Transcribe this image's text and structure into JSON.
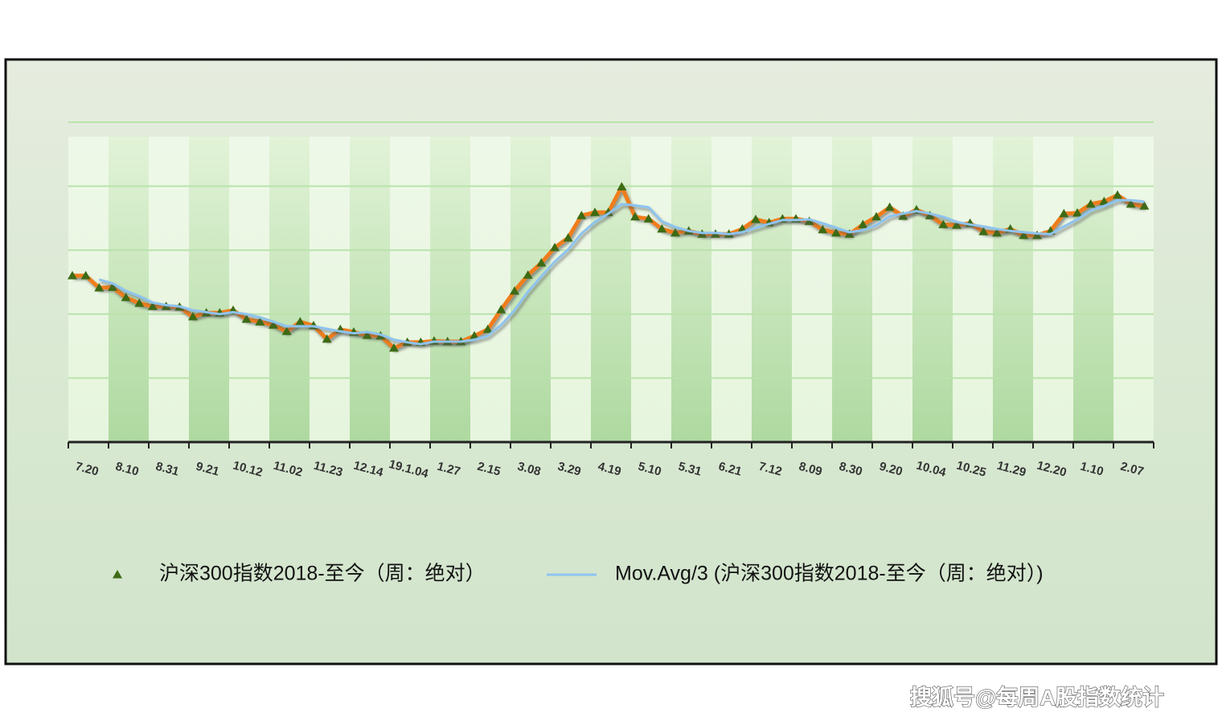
{
  "chart_data": {
    "type": "line",
    "categories": [
      "7.20",
      null,
      null,
      "8.10",
      null,
      null,
      "8.31",
      null,
      null,
      "9.21",
      null,
      null,
      "10.12",
      null,
      null,
      "11.02",
      null,
      null,
      "11.23",
      null,
      null,
      "12.14",
      null,
      null,
      "19.1.04",
      null,
      null,
      "1.27",
      null,
      null,
      "2.15",
      null,
      null,
      "3.08",
      null,
      null,
      "3.29",
      null,
      null,
      "4.19",
      null,
      null,
      "5.10",
      null,
      null,
      "5.31",
      null,
      null,
      "6.21",
      null,
      null,
      "7.12",
      null,
      null,
      "8.09",
      null,
      null,
      "8.30",
      null,
      null,
      "9.20",
      null,
      null,
      "10.04",
      null,
      null,
      "10.25",
      null,
      null,
      "11.29",
      null,
      null,
      "12.20",
      null,
      null,
      "1.10",
      null,
      null,
      "2.07",
      null,
      null
    ],
    "series": [
      {
        "name": "沪深300指数2018-至今（周：绝对）",
        "color": "#f07d1a",
        "marker_color": "#3d6b14",
        "values": [
          260,
          260,
          241,
          242,
          226,
          217,
          212,
          212,
          211,
          196,
          202,
          202,
          206,
          192,
          188,
          183,
          173,
          188,
          182,
          161,
          176,
          172,
          167,
          166,
          147,
          156,
          156,
          158,
          157,
          157,
          166,
          176,
          207,
          236,
          261,
          280,
          304,
          319,
          354,
          359,
          359,
          399,
          352,
          349,
          333,
          327,
          330,
          325,
          325,
          325,
          333,
          348,
          343,
          349,
          349,
          345,
          332,
          327,
          325,
          340,
          352,
          367,
          353,
          363,
          354,
          340,
          339,
          342,
          329,
          327,
          333,
          323,
          323,
          330,
          357,
          358,
          372,
          376,
          386,
          372,
          369
        ]
      },
      {
        "name": "Mov.Avg/3 (沪深300指数2018-至今（周：绝对）)",
        "color": "#8ec3ef",
        "values": [
          null,
          null,
          254,
          248,
          236,
          228,
          218,
          214,
          212,
          206,
          203,
          200,
          203,
          200,
          195,
          188,
          181,
          181,
          181,
          177,
          173,
          170,
          172,
          168,
          160,
          156,
          153,
          157,
          157,
          157,
          160,
          166,
          183,
          206,
          235,
          259,
          282,
          301,
          326,
          344,
          357,
          372,
          370,
          367,
          345,
          336,
          330,
          327,
          327,
          325,
          328,
          335,
          341,
          347,
          347,
          348,
          342,
          335,
          328,
          331,
          339,
          353,
          357,
          361,
          357,
          352,
          344,
          340,
          337,
          333,
          330,
          328,
          326,
          325,
          337,
          348,
          362,
          369,
          378,
          378,
          376
        ]
      }
    ],
    "ylim": [
      0,
      500
    ],
    "yticks": [
      0,
      100,
      200,
      300,
      400,
      500
    ],
    "grid": true
  },
  "watermark": "搜狐号@每周A股指数统计"
}
